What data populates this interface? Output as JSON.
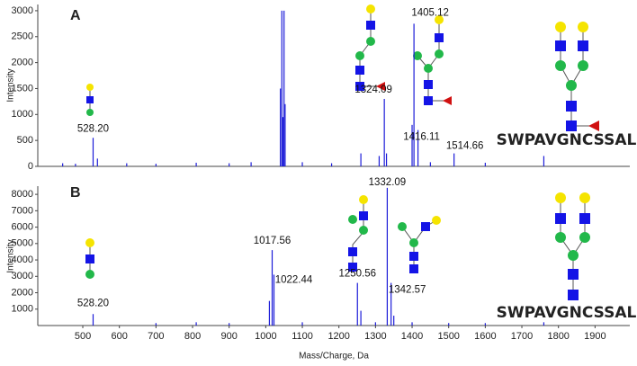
{
  "chart_data": [
    {
      "type": "bar",
      "panel_label": "A",
      "ylabel": "Intensity",
      "annotation": "SWPAVGNCSSALR",
      "color": "#1c1cd8",
      "xlim": [
        377,
        1995
      ],
      "ylim": [
        0,
        3120
      ],
      "yticks": [
        0,
        500,
        1000,
        1500,
        2000,
        2500,
        3000
      ],
      "x": [
        445,
        480,
        528.2,
        540,
        620,
        700,
        810,
        900,
        960,
        1040,
        1044,
        1047,
        1050,
        1053,
        1100,
        1180,
        1260,
        1310,
        1324.09,
        1330,
        1400,
        1405.12,
        1416.11,
        1450,
        1514.66,
        1600,
        1760
      ],
      "values": [
        60,
        50,
        550,
        150,
        60,
        50,
        70,
        60,
        80,
        1500,
        3000,
        950,
        3000,
        1200,
        80,
        60,
        250,
        200,
        1300,
        250,
        800,
        2750,
        700,
        80,
        250,
        70,
        200
      ],
      "peak_labels": [
        null,
        null,
        "528.20",
        null,
        null,
        null,
        null,
        null,
        null,
        null,
        null,
        null,
        null,
        null,
        null,
        null,
        null,
        null,
        "1324.09",
        null,
        null,
        "1405.12",
        "1416.11",
        null,
        "1514.66",
        null,
        null
      ]
    },
    {
      "type": "bar",
      "panel_label": "B",
      "ylabel": "Intensity",
      "xlabel": "Mass/Charge, Da",
      "annotation": "SWPAVGNCSSALR",
      "color": "#1c1cd8",
      "xlim": [
        377,
        1995
      ],
      "ylim": [
        0,
        8500
      ],
      "yticks": [
        1000,
        2000,
        3000,
        4000,
        5000,
        6000,
        7000,
        8000
      ],
      "xticks": [
        500,
        600,
        700,
        800,
        900,
        1000,
        1100,
        1200,
        1300,
        1400,
        1500,
        1600,
        1700,
        1800,
        1900
      ],
      "x": [
        528.2,
        700,
        810,
        900,
        1010,
        1017.56,
        1022.44,
        1100,
        1250.56,
        1260,
        1300,
        1332.09,
        1342.57,
        1350,
        1400,
        1500,
        1600,
        1760
      ],
      "values": [
        700,
        150,
        200,
        150,
        1500,
        4600,
        3100,
        200,
        2600,
        900,
        200,
        8400,
        2600,
        600,
        200,
        150,
        150,
        200
      ],
      "peak_labels": [
        "528.20",
        null,
        null,
        null,
        null,
        "1017.56",
        "1022.44",
        null,
        "1250.56",
        null,
        null,
        "1332.09",
        "1342.57",
        null,
        null,
        null,
        null,
        null
      ]
    }
  ]
}
